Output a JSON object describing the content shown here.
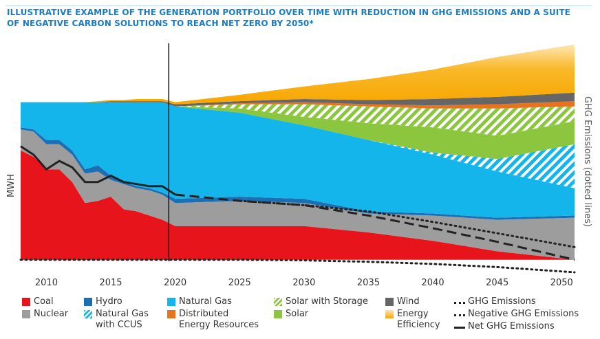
{
  "chart_data": {
    "type": "area",
    "title": "ILLUSTRATIVE EXAMPLE OF THE GENERATION PORTFOLIO OVER TIME WITH REDUCTION IN GHG EMISSIONS AND A SUITE OF NEGATIVE CARBON SOLUTIONS TO REACH NET ZERO BY 2050*",
    "ylabel": "MWH",
    "y2label": "GHG Emissions (dotted lines)",
    "stacked": true,
    "x": [
      2008,
      2009,
      2010,
      2011,
      2012,
      2013,
      2014,
      2015,
      2016,
      2017,
      2018,
      2019,
      2020,
      2025,
      2030,
      2035,
      2040,
      2045,
      2051
    ],
    "xlim": [
      2008,
      2051
    ],
    "xticks": [
      2010,
      2015,
      2020,
      2025,
      2030,
      2035,
      2040,
      2045,
      2050
    ],
    "ylim": [
      -6,
      104
    ],
    "vline_x": 2019.5,
    "series": [
      {
        "name": "Coal",
        "color": "#e8141b",
        "values": [
          52,
          49,
          43,
          43,
          37,
          27,
          28,
          30,
          24,
          23,
          21,
          19,
          16,
          16,
          16,
          13,
          9,
          4,
          0
        ]
      },
      {
        "name": "Nuclear",
        "color": "#9d9d9d",
        "values": [
          10,
          12,
          12,
          12,
          13,
          14,
          14,
          8,
          12,
          11,
          12,
          12,
          11,
          12,
          11,
          9,
          12,
          15,
          20
        ]
      },
      {
        "name": "Hydro",
        "color": "#1a6fb5",
        "values": [
          1,
          1,
          2,
          2,
          2,
          2,
          3,
          2,
          1,
          1,
          1,
          1,
          2,
          2,
          2,
          1,
          1,
          1,
          1
        ]
      },
      {
        "name": "Natural Gas",
        "color": "#13b5ea",
        "values": [
          12,
          13,
          18,
          18,
          23,
          32,
          30,
          35,
          38,
          40,
          41,
          43,
          44,
          40,
          35,
          34,
          28,
          22,
          13
        ]
      },
      {
        "name": "Natural Gas with CCUS",
        "color": "#13b5ea",
        "hatch": true,
        "values": [
          0,
          0,
          0,
          0,
          0,
          0,
          0,
          0,
          0,
          0,
          0,
          0,
          0,
          0,
          0,
          0,
          1,
          6,
          21
        ]
      },
      {
        "name": "Solar",
        "color": "#8cc63f",
        "values": [
          0,
          0,
          0,
          0,
          0,
          0,
          0,
          0,
          0,
          0,
          0,
          0,
          0,
          2,
          4,
          8,
          12,
          11,
          11
        ]
      },
      {
        "name": "Solar with Storage",
        "color": "#8cc63f",
        "hatch": true,
        "values": [
          0,
          0,
          0,
          0,
          0,
          0,
          0,
          0,
          0,
          0,
          0,
          0,
          0,
          2,
          6,
          8,
          9,
          13,
          7
        ]
      },
      {
        "name": "Distributed Energy Resources",
        "color": "#e8731e",
        "values": [
          0,
          0,
          0,
          0,
          0,
          0,
          0,
          0,
          0,
          0,
          0,
          0,
          0,
          0.5,
          1,
          1,
          1.5,
          2,
          2.5
        ]
      },
      {
        "name": "Wind",
        "color": "#666666",
        "values": [
          0,
          0,
          0,
          0,
          0,
          0,
          0,
          0.5,
          0.5,
          0.5,
          0.5,
          0.5,
          1,
          1,
          1.5,
          2,
          3,
          3.5,
          4
        ]
      },
      {
        "name": "Energy Efficiency",
        "color": "#f7a600",
        "gradient": true,
        "values": [
          0,
          0,
          0,
          0,
          0,
          0,
          0.5,
          0.5,
          0.5,
          1,
          1,
          1,
          1,
          3,
          6,
          10,
          14,
          19,
          23
        ]
      }
    ],
    "lines": [
      {
        "name": "GHG Emissions",
        "color": "#222222",
        "style": "dotted",
        "values": [
          null,
          null,
          null,
          null,
          null,
          null,
          null,
          null,
          null,
          null,
          null,
          null,
          null,
          28,
          26,
          23,
          18,
          12.6,
          6
        ]
      },
      {
        "name": "Negative GHG Emissions",
        "color": "#222222",
        "style": "dotted",
        "values": [
          0,
          0,
          0,
          0,
          0,
          0,
          0,
          0,
          0,
          0,
          0,
          0,
          0,
          0,
          -0.3,
          -1,
          -2,
          -3.5,
          -6
        ]
      },
      {
        "name": "Net GHG Emissions",
        "color": "#222222",
        "style": "solid-then-dashed",
        "dash_from": 2020,
        "values": [
          54,
          50,
          43,
          47,
          44,
          37,
          37,
          40,
          37,
          36,
          35,
          35,
          31,
          28,
          26,
          21,
          15,
          8.5,
          0
        ]
      }
    ]
  }
}
